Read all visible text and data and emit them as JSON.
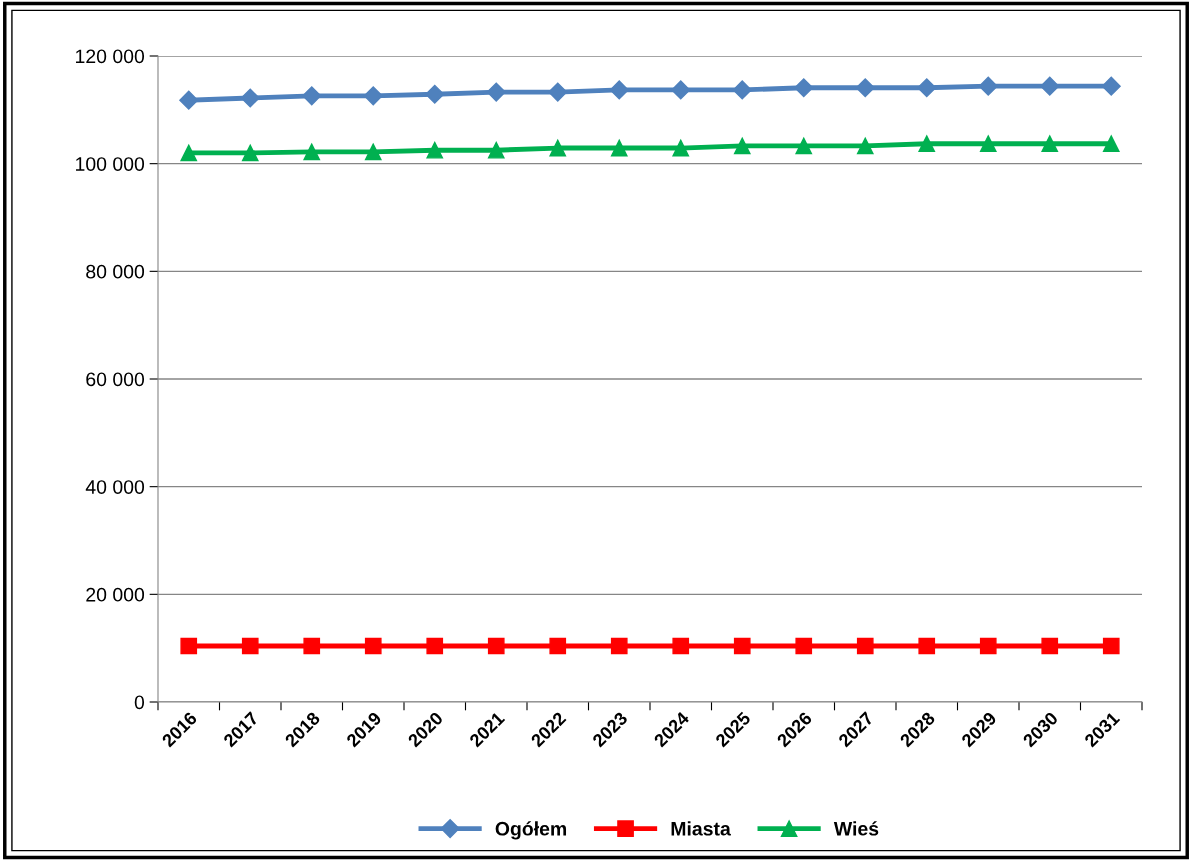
{
  "chart_data": {
    "type": "line",
    "categories": [
      "2016",
      "2017",
      "2018",
      "2019",
      "2020",
      "2021",
      "2022",
      "2023",
      "2024",
      "2025",
      "2026",
      "2027",
      "2028",
      "2029",
      "2030",
      "2031"
    ],
    "series": [
      {
        "name": "Ogółem",
        "color": "#4f81bd",
        "marker": "diamond",
        "values": [
          111800,
          112200,
          112600,
          112600,
          112900,
          113300,
          113300,
          113700,
          113700,
          113700,
          114100,
          114100,
          114100,
          114400,
          114400,
          114400
        ]
      },
      {
        "name": "Miasta",
        "color": "#ff0000",
        "marker": "square",
        "values": [
          10400,
          10400,
          10400,
          10400,
          10400,
          10400,
          10400,
          10400,
          10400,
          10400,
          10400,
          10400,
          10400,
          10400,
          10400,
          10400
        ]
      },
      {
        "name": "Wieś",
        "color": "#00b050",
        "marker": "triangle",
        "values": [
          102000,
          102000,
          102200,
          102200,
          102500,
          102500,
          102900,
          102900,
          102900,
          103300,
          103300,
          103300,
          103700,
          103700,
          103700,
          103700
        ]
      }
    ],
    "ylim": [
      0,
      120000
    ],
    "yticks": [
      {
        "value": 0,
        "label": "0"
      },
      {
        "value": 20000,
        "label": "20 000"
      },
      {
        "value": 40000,
        "label": "40 000"
      },
      {
        "value": 60000,
        "label": "60 000"
      },
      {
        "value": 80000,
        "label": "80 000"
      },
      {
        "value": 100000,
        "label": "100 000"
      },
      {
        "value": 120000,
        "label": "120 000"
      }
    ],
    "grid": "y",
    "legend": "bottom",
    "line_style": "solid"
  }
}
